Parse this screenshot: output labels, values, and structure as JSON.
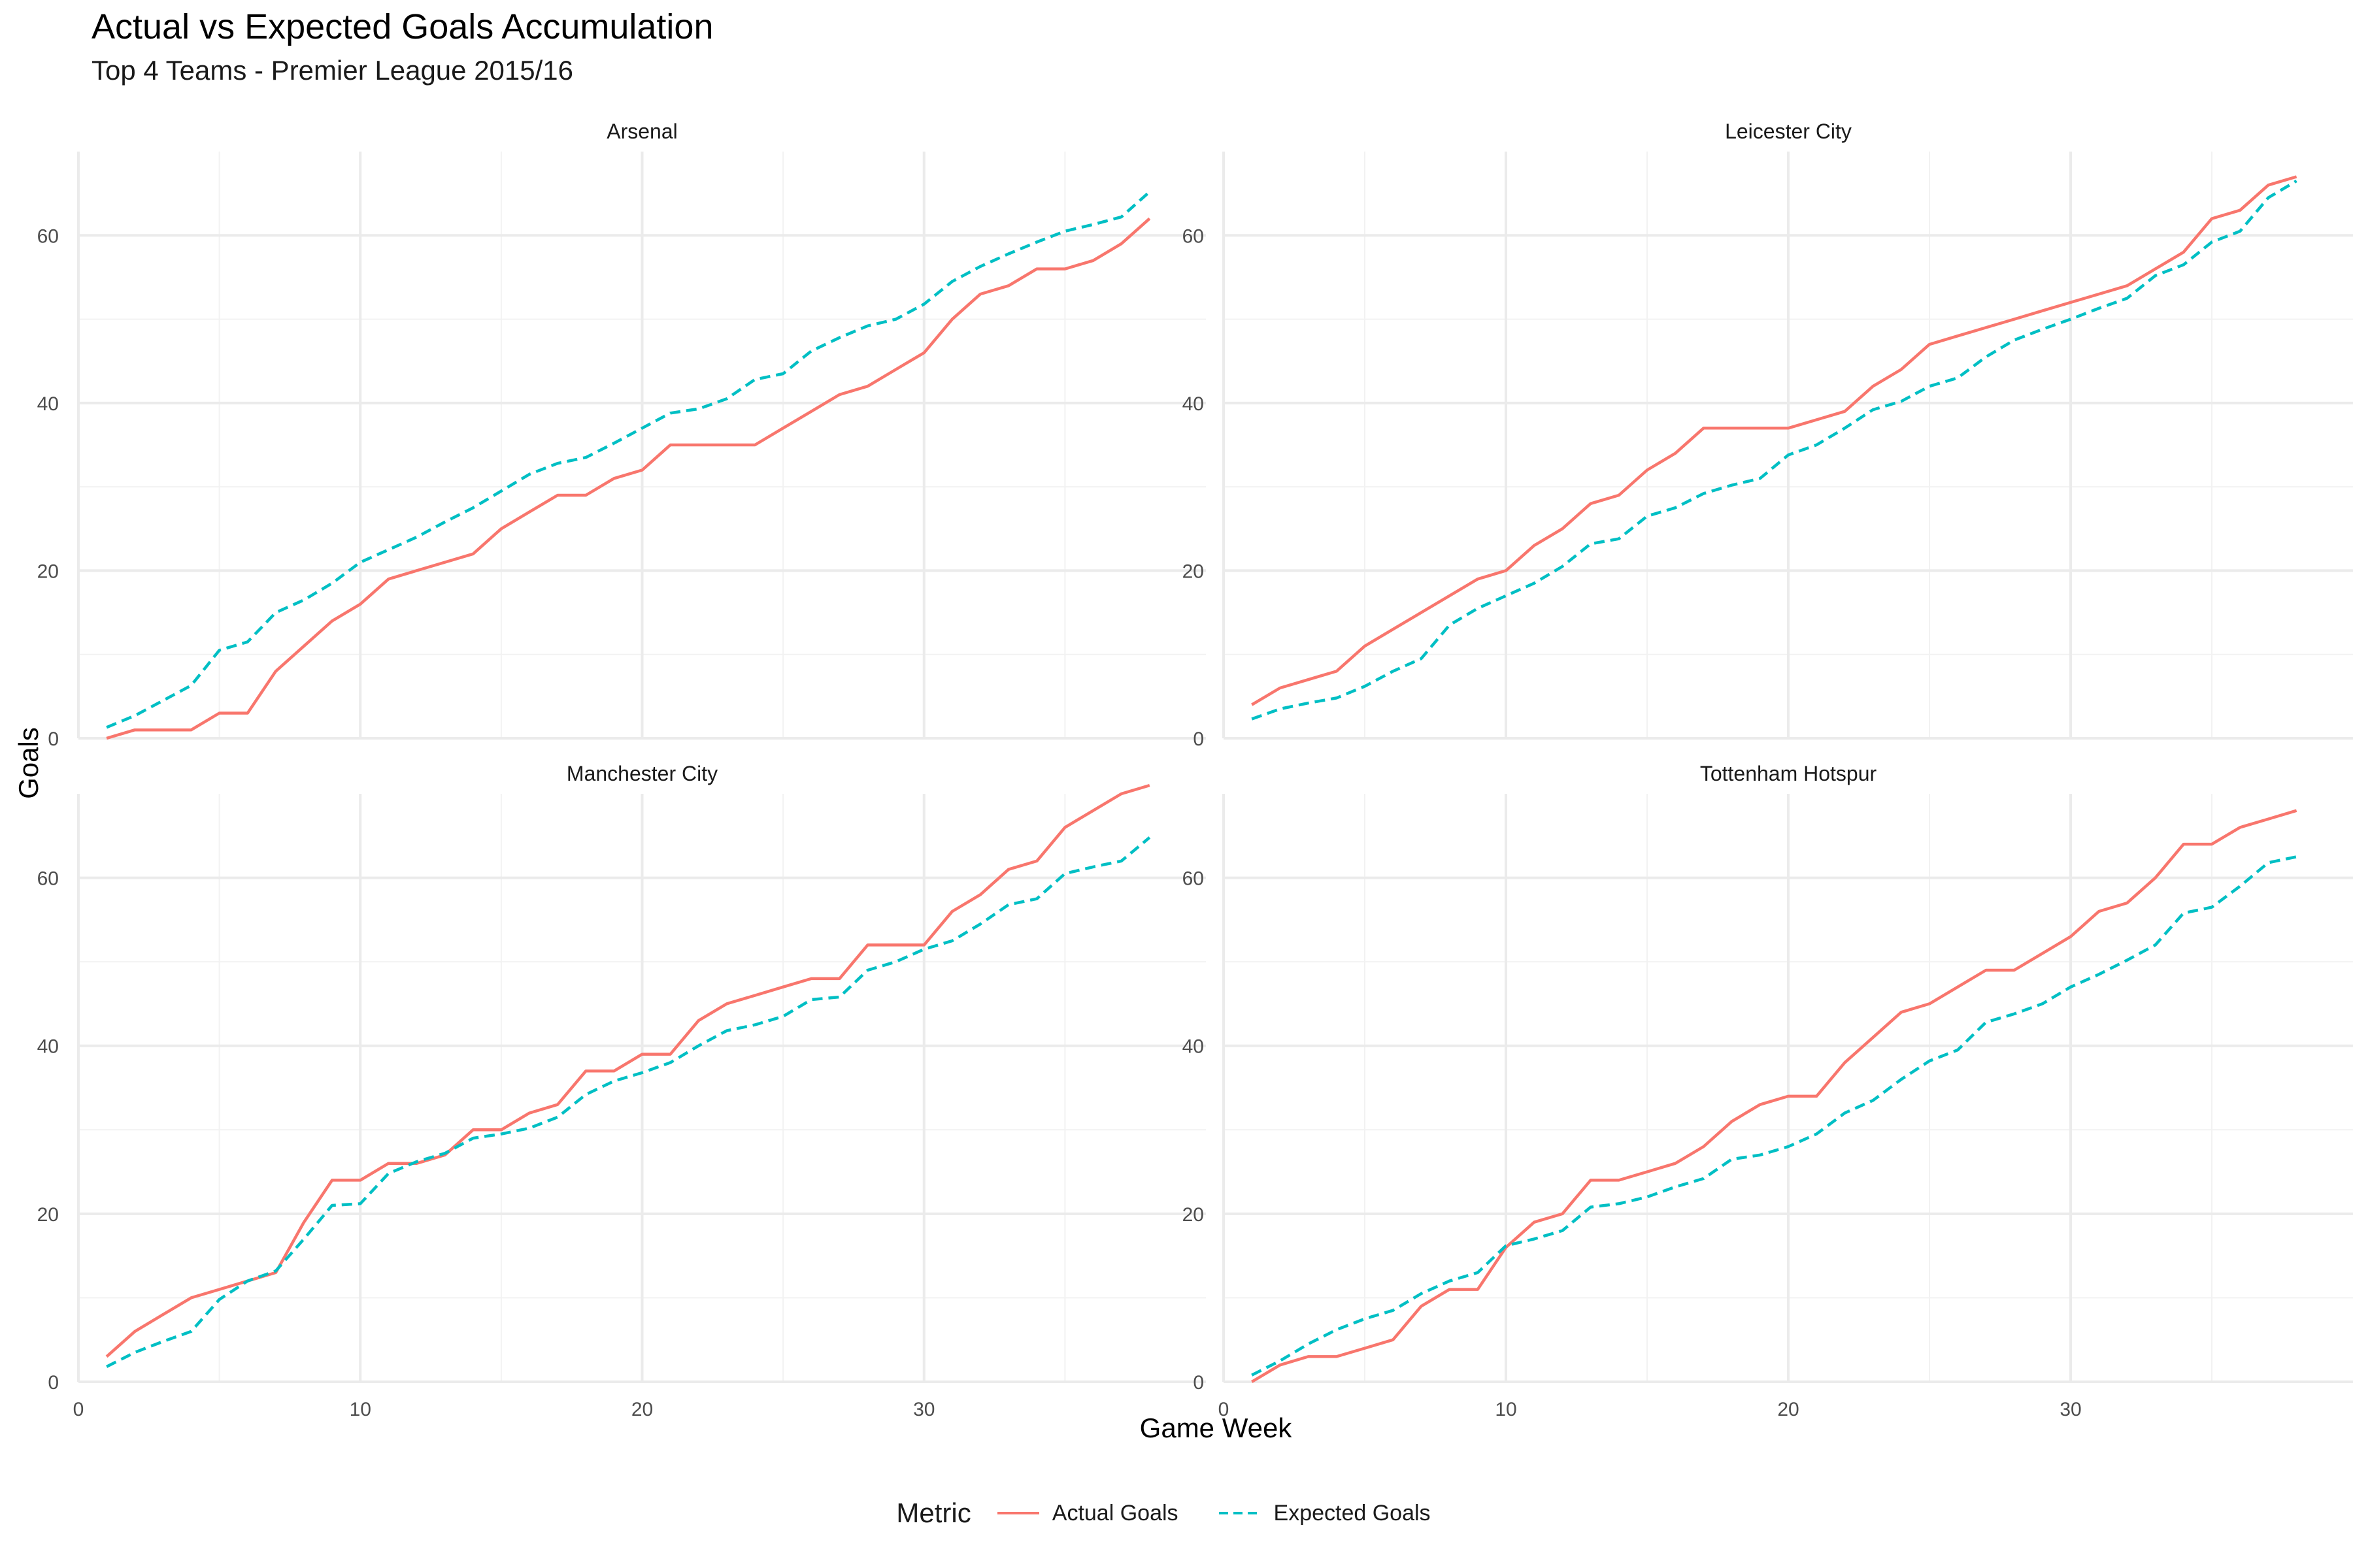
{
  "title": "Actual vs Expected Goals Accumulation",
  "subtitle": "Top 4 Teams - Premier League 2015/16",
  "chart_data": {
    "type": "line",
    "xlabel": "Game Week",
    "ylabel": "Goals",
    "xlim": [
      0,
      40
    ],
    "ylim": [
      0,
      70
    ],
    "x_ticks": [
      0,
      10,
      20,
      30
    ],
    "y_ticks": [
      0,
      20,
      40,
      60
    ],
    "grid": true,
    "legend_title": "Metric",
    "legend_position": "bottom",
    "series_meta": [
      {
        "name": "Actual Goals",
        "color": "#F8766D",
        "dash": "solid"
      },
      {
        "name": "Expected Goals",
        "color": "#00BFC4",
        "dash": "dashed"
      }
    ],
    "x": [
      1,
      2,
      3,
      4,
      5,
      6,
      7,
      8,
      9,
      10,
      11,
      12,
      13,
      14,
      15,
      16,
      17,
      18,
      19,
      20,
      21,
      22,
      23,
      24,
      25,
      26,
      27,
      28,
      29,
      30,
      31,
      32,
      33,
      34,
      35,
      36,
      37,
      38
    ],
    "panels": [
      {
        "name": "Arsenal",
        "series": [
          {
            "name": "Actual Goals",
            "values": [
              0,
              1,
              1,
              1,
              3,
              3,
              8,
              11,
              14,
              16,
              19,
              20,
              21,
              22,
              25,
              27,
              29,
              29,
              31,
              32,
              35,
              35,
              35,
              35,
              37,
              39,
              41,
              42,
              44,
              46,
              50,
              53,
              54,
              56,
              56,
              57,
              59,
              62
            ]
          },
          {
            "name": "Expected Goals",
            "values": [
              1.3,
              2.7,
              4.5,
              6.3,
              10.5,
              11.5,
              15,
              16.5,
              18.5,
              21,
              22.5,
              24,
              25.8,
              27.5,
              29.5,
              31.5,
              32.8,
              33.5,
              35.2,
              37,
              38.8,
              39.3,
              40.5,
              42.8,
              43.5,
              46.2,
              47.8,
              49.2,
              50,
              51.8,
              54.5,
              56.3,
              57.8,
              59.2,
              60.5,
              61.3,
              62.2,
              65.2
            ]
          }
        ]
      },
      {
        "name": "Leicester City",
        "series": [
          {
            "name": "Actual Goals",
            "values": [
              4,
              6,
              7,
              8,
              11,
              13,
              15,
              17,
              19,
              20,
              23,
              25,
              28,
              29,
              32,
              34,
              37,
              37,
              37,
              37,
              38,
              39,
              42,
              44,
              47,
              48,
              49,
              50,
              51,
              52,
              53,
              54,
              56,
              58,
              62,
              63,
              66,
              67
            ]
          },
          {
            "name": "Expected Goals",
            "values": [
              2.3,
              3.5,
              4.2,
              4.8,
              6.2,
              8,
              9.5,
              13.5,
              15.5,
              17,
              18.5,
              20.5,
              23.2,
              23.8,
              26.5,
              27.5,
              29.2,
              30.2,
              31,
              33.8,
              35,
              37,
              39.2,
              40.2,
              42,
              43,
              45.5,
              47.5,
              48.8,
              50,
              51.3,
              52.5,
              55.2,
              56.5,
              59.2,
              60.5,
              64.5,
              66.5
            ]
          }
        ]
      },
      {
        "name": "Manchester City",
        "series": [
          {
            "name": "Actual Goals",
            "values": [
              3,
              6,
              8,
              10,
              11,
              12,
              13,
              19,
              24,
              24,
              26,
              26,
              27,
              30,
              30,
              32,
              33,
              37,
              37,
              39,
              39,
              43,
              45,
              46,
              47,
              48,
              48,
              52,
              52,
              52,
              56,
              58,
              61,
              62,
              66,
              68,
              70,
              71
            ]
          },
          {
            "name": "Expected Goals",
            "values": [
              1.8,
              3.5,
              4.8,
              6,
              9.8,
              12,
              13.2,
              17,
              21,
              21.2,
              24.8,
              26.2,
              27.2,
              29,
              29.5,
              30.2,
              31.5,
              34.2,
              35.8,
              36.8,
              38,
              40,
              41.8,
              42.5,
              43.5,
              45.5,
              45.8,
              49,
              50,
              51.5,
              52.5,
              54.5,
              56.8,
              57.5,
              60.5,
              61.3,
              62,
              64.8
            ]
          }
        ]
      },
      {
        "name": "Tottenham Hotspur",
        "series": [
          {
            "name": "Actual Goals",
            "values": [
              0,
              2,
              3,
              3,
              4,
              5,
              9,
              11,
              11,
              16,
              19,
              20,
              24,
              24,
              25,
              26,
              28,
              31,
              33,
              34,
              34,
              38,
              41,
              44,
              45,
              47,
              49,
              49,
              51,
              53,
              56,
              57,
              60,
              64,
              64,
              66,
              67,
              68
            ]
          },
          {
            "name": "Expected Goals",
            "values": [
              0.8,
              2.5,
              4.5,
              6.2,
              7.5,
              8.5,
              10.5,
              12,
              13,
              16.2,
              17,
              18,
              20.8,
              21.2,
              22,
              23.2,
              24.2,
              26.5,
              27,
              28,
              29.5,
              32,
              33.5,
              36,
              38.2,
              39.5,
              42.8,
              43.8,
              45,
              47,
              48.5,
              50.2,
              52,
              55.8,
              56.5,
              59,
              61.8,
              62.5
            ]
          }
        ]
      }
    ]
  }
}
